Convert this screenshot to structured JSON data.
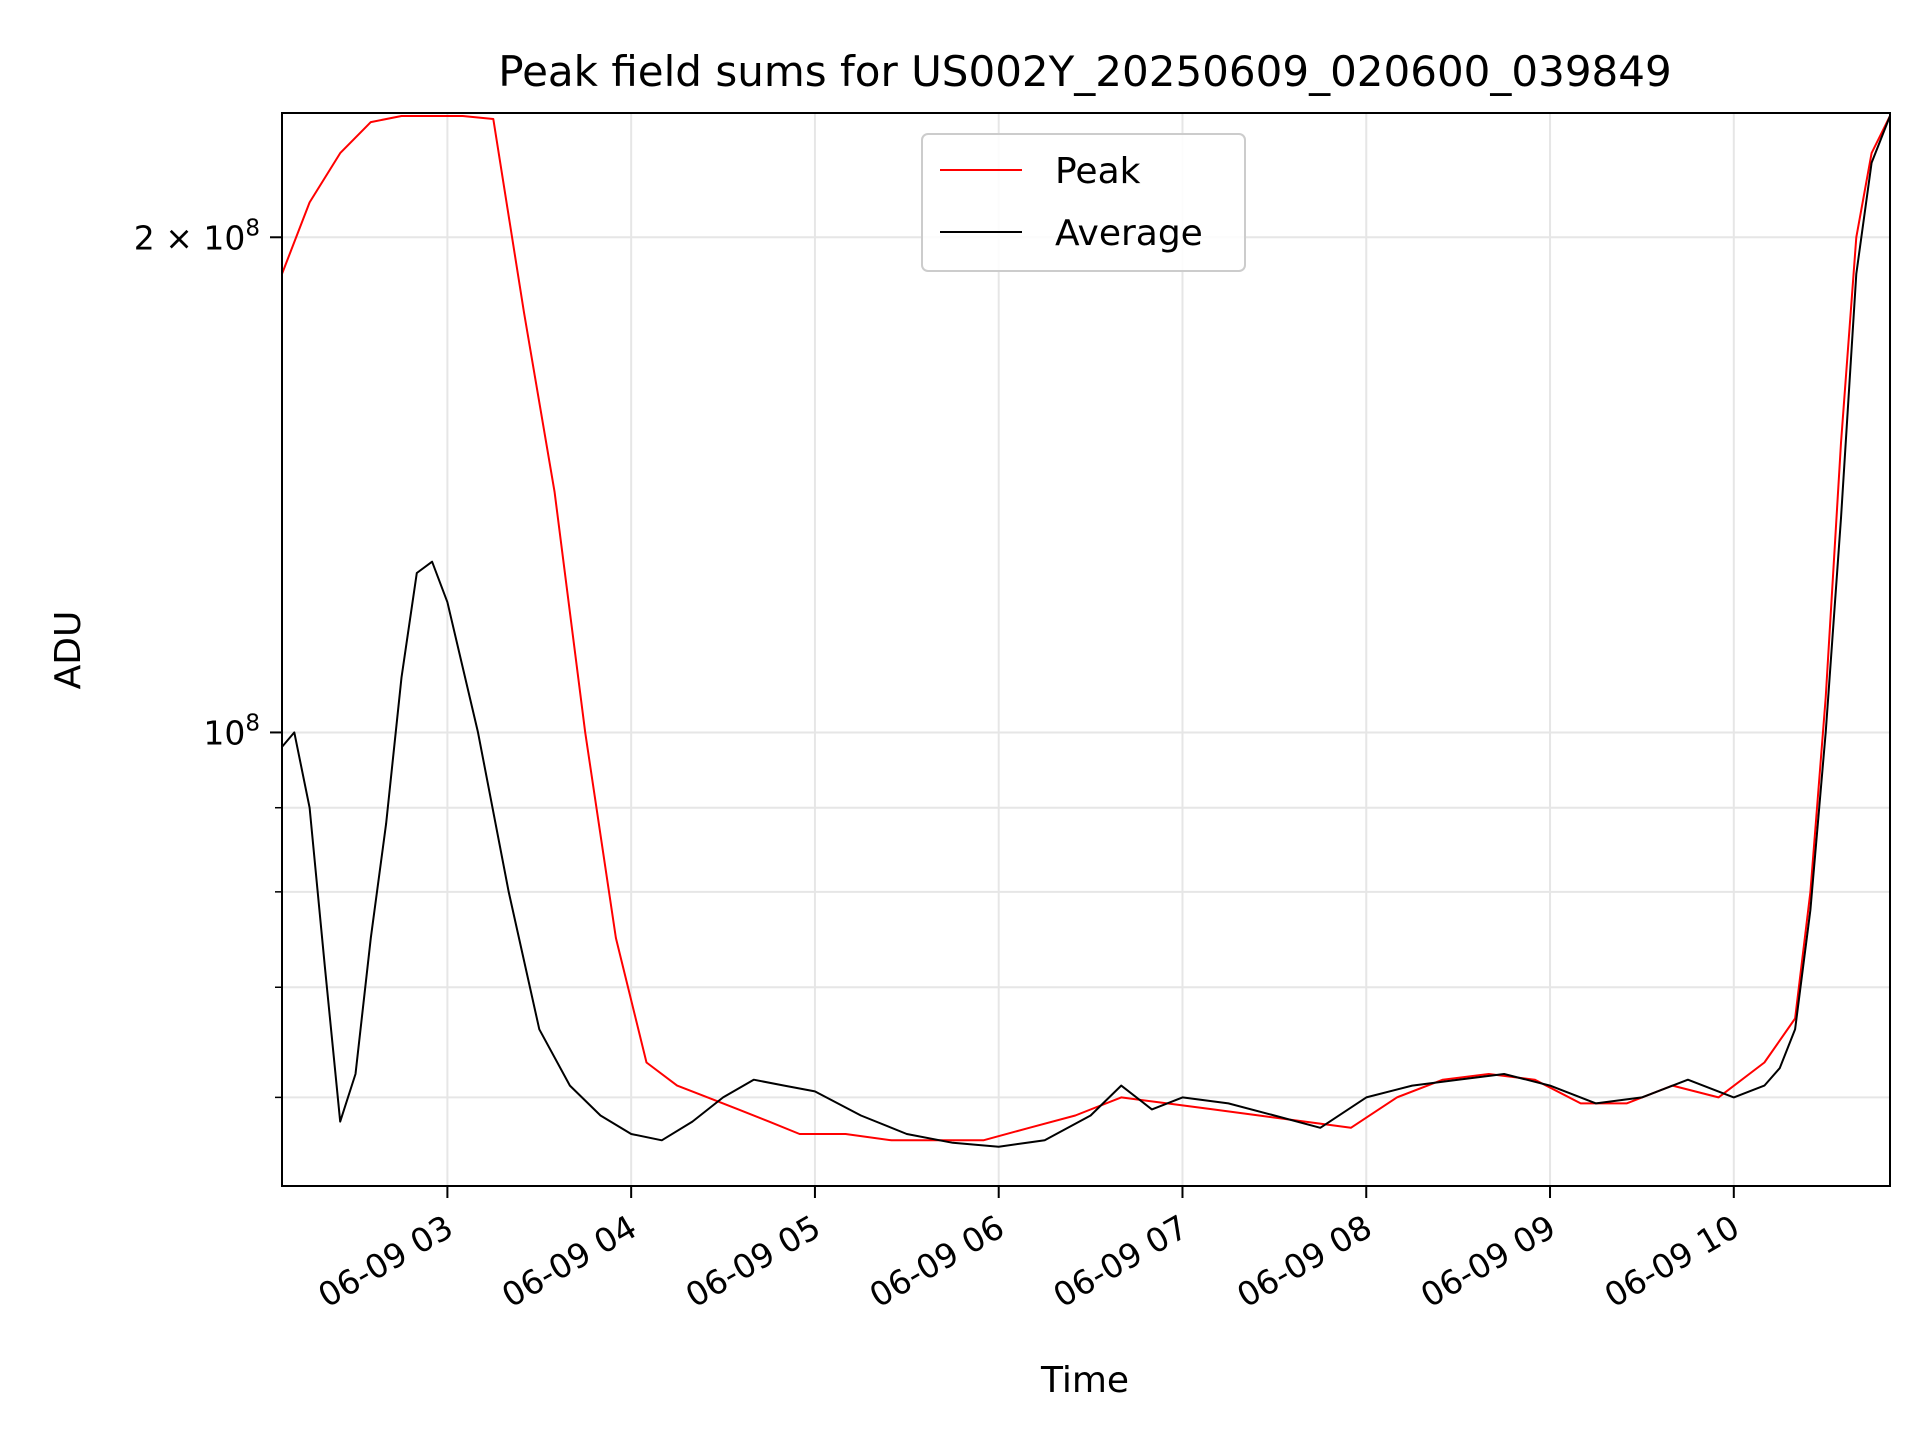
{
  "chart_data": {
    "type": "line",
    "title": "Peak field sums for US002Y_20250609_020600_039849",
    "xlabel": "Time",
    "ylabel": "ADU",
    "y_scale": "log",
    "xlim": [
      "2025-06-09T02:06",
      "2025-06-09T10:51"
    ],
    "ylim": [
      53000000,
      238000000
    ],
    "x_ticks": [
      {
        "value": "2025-06-09T03:00",
        "label": "06-09 03"
      },
      {
        "value": "2025-06-09T04:00",
        "label": "06-09 04"
      },
      {
        "value": "2025-06-09T05:00",
        "label": "06-09 05"
      },
      {
        "value": "2025-06-09T06:00",
        "label": "06-09 06"
      },
      {
        "value": "2025-06-09T07:00",
        "label": "06-09 07"
      },
      {
        "value": "2025-06-09T08:00",
        "label": "06-09 08"
      },
      {
        "value": "2025-06-09T09:00",
        "label": "06-09 09"
      },
      {
        "value": "2025-06-09T10:00",
        "label": "06-09 10"
      }
    ],
    "y_ticks": [
      {
        "value": 100000000,
        "label_base": "10",
        "label_exp": "8",
        "label_coef": ""
      },
      {
        "value": 200000000,
        "label_base": "10",
        "label_exp": "8",
        "label_coef": "2 × "
      }
    ],
    "y_minor_ticks": [
      60000000,
      70000000,
      80000000,
      90000000
    ],
    "grid": true,
    "legend_position": "top-center",
    "series": [
      {
        "name": "Peak",
        "color": "#ff0000",
        "x": [
          "2025-06-09T02:06",
          "2025-06-09T02:15",
          "2025-06-09T02:25",
          "2025-06-09T02:35",
          "2025-06-09T02:45",
          "2025-06-09T02:55",
          "2025-06-09T03:05",
          "2025-06-09T03:15",
          "2025-06-09T03:25",
          "2025-06-09T03:35",
          "2025-06-09T03:45",
          "2025-06-09T03:55",
          "2025-06-09T04:05",
          "2025-06-09T04:15",
          "2025-06-09T04:25",
          "2025-06-09T04:35",
          "2025-06-09T04:45",
          "2025-06-09T04:55",
          "2025-06-09T05:10",
          "2025-06-09T05:25",
          "2025-06-09T05:40",
          "2025-06-09T05:55",
          "2025-06-09T06:10",
          "2025-06-09T06:25",
          "2025-06-09T06:40",
          "2025-06-09T06:55",
          "2025-06-09T07:10",
          "2025-06-09T07:25",
          "2025-06-09T07:40",
          "2025-06-09T07:55",
          "2025-06-09T08:10",
          "2025-06-09T08:25",
          "2025-06-09T08:40",
          "2025-06-09T08:55",
          "2025-06-09T09:10",
          "2025-06-09T09:25",
          "2025-06-09T09:40",
          "2025-06-09T09:55",
          "2025-06-09T10:10",
          "2025-06-09T10:20",
          "2025-06-09T10:25",
          "2025-06-09T10:30",
          "2025-06-09T10:35",
          "2025-06-09T10:40",
          "2025-06-09T10:45",
          "2025-06-09T10:51"
        ],
        "values": [
          190000000,
          210000000,
          225000000,
          235000000,
          237000000,
          237000000,
          237000000,
          236000000,
          180000000,
          140000000,
          100000000,
          75000000,
          63000000,
          61000000,
          60000000,
          59000000,
          58000000,
          57000000,
          57000000,
          56500000,
          56500000,
          56500000,
          57500000,
          58500000,
          60000000,
          59500000,
          59000000,
          58500000,
          58000000,
          57500000,
          60000000,
          61500000,
          62000000,
          61500000,
          59500000,
          59500000,
          61000000,
          60000000,
          63000000,
          67000000,
          80000000,
          105000000,
          150000000,
          200000000,
          225000000,
          237000000
        ]
      },
      {
        "name": "Average",
        "color": "#000000",
        "x": [
          "2025-06-09T02:06",
          "2025-06-09T02:10",
          "2025-06-09T02:15",
          "2025-06-09T02:20",
          "2025-06-09T02:25",
          "2025-06-09T02:30",
          "2025-06-09T02:35",
          "2025-06-09T02:40",
          "2025-06-09T02:45",
          "2025-06-09T02:50",
          "2025-06-09T02:55",
          "2025-06-09T03:00",
          "2025-06-09T03:10",
          "2025-06-09T03:20",
          "2025-06-09T03:30",
          "2025-06-09T03:40",
          "2025-06-09T03:50",
          "2025-06-09T04:00",
          "2025-06-09T04:10",
          "2025-06-09T04:20",
          "2025-06-09T04:30",
          "2025-06-09T04:40",
          "2025-06-09T04:50",
          "2025-06-09T05:00",
          "2025-06-09T05:15",
          "2025-06-09T05:30",
          "2025-06-09T05:45",
          "2025-06-09T06:00",
          "2025-06-09T06:15",
          "2025-06-09T06:30",
          "2025-06-09T06:40",
          "2025-06-09T06:50",
          "2025-06-09T07:00",
          "2025-06-09T07:15",
          "2025-06-09T07:30",
          "2025-06-09T07:45",
          "2025-06-09T08:00",
          "2025-06-09T08:15",
          "2025-06-09T08:30",
          "2025-06-09T08:45",
          "2025-06-09T09:00",
          "2025-06-09T09:15",
          "2025-06-09T09:30",
          "2025-06-09T09:45",
          "2025-06-09T10:00",
          "2025-06-09T10:10",
          "2025-06-09T10:15",
          "2025-06-09T10:20",
          "2025-06-09T10:25",
          "2025-06-09T10:30",
          "2025-06-09T10:35",
          "2025-06-09T10:40",
          "2025-06-09T10:45",
          "2025-06-09T10:51"
        ],
        "values": [
          98000000,
          100000000,
          90000000,
          72000000,
          58000000,
          62000000,
          75000000,
          88000000,
          108000000,
          125000000,
          127000000,
          120000000,
          100000000,
          80000000,
          66000000,
          61000000,
          58500000,
          57000000,
          56500000,
          58000000,
          60000000,
          61500000,
          61000000,
          60500000,
          58500000,
          57000000,
          56300000,
          56000000,
          56500000,
          58500000,
          61000000,
          59000000,
          60000000,
          59500000,
          58500000,
          57500000,
          60000000,
          61000000,
          61500000,
          62000000,
          61000000,
          59500000,
          60000000,
          61500000,
          60000000,
          61000000,
          62500000,
          66000000,
          78000000,
          100000000,
          135000000,
          190000000,
          222000000,
          237000000
        ]
      }
    ]
  }
}
